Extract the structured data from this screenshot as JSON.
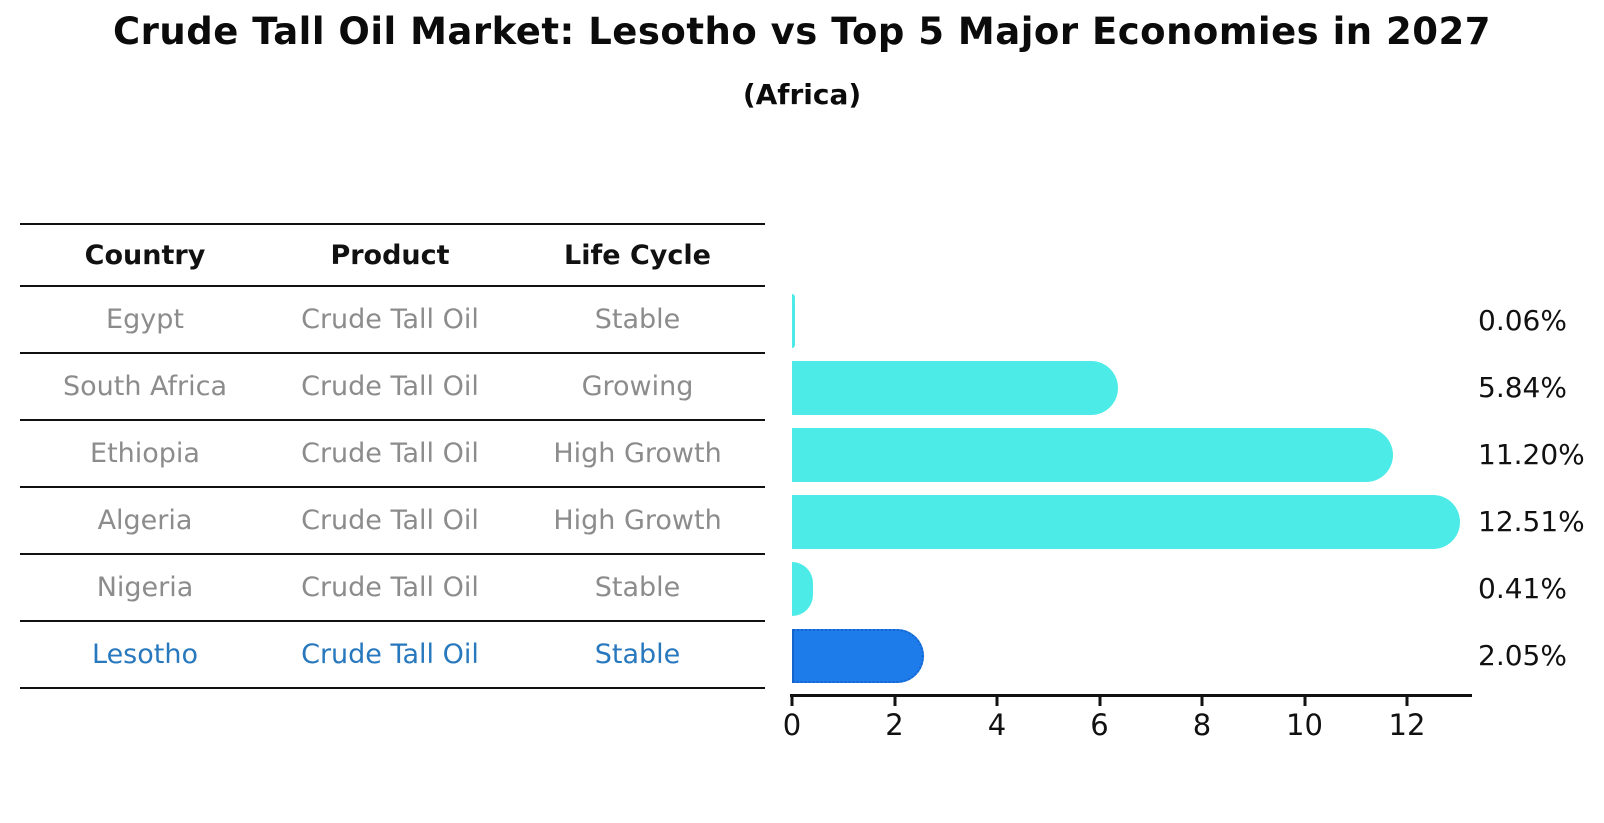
{
  "title": "Crude Tall Oil Market: Lesotho vs Top 5 Major Economies in 2027",
  "subtitle": "(Africa)",
  "table": {
    "headers": [
      "Country",
      "Product",
      "Life Cycle"
    ],
    "rows": [
      {
        "country": "Egypt",
        "product": "Crude Tall Oil",
        "life_cycle": "Stable",
        "highlight": false
      },
      {
        "country": "South Africa",
        "product": "Crude Tall Oil",
        "life_cycle": "Growing",
        "highlight": false
      },
      {
        "country": "Ethiopia",
        "product": "Crude Tall Oil",
        "life_cycle": "High Growth",
        "highlight": false
      },
      {
        "country": "Algeria",
        "product": "Crude Tall Oil",
        "life_cycle": "High Growth",
        "highlight": false
      },
      {
        "country": "Nigeria",
        "product": "Crude Tall Oil",
        "life_cycle": "Stable",
        "highlight": false
      },
      {
        "country": "Lesotho",
        "product": "Crude Tall Oil",
        "life_cycle": "Stable",
        "highlight": true
      }
    ]
  },
  "chart_data": {
    "type": "bar",
    "orientation": "horizontal",
    "title": "Crude Tall Oil Market: Lesotho vs Top 5 Major Economies in 2027",
    "subtitle": "(Africa)",
    "categories": [
      "Egypt",
      "South Africa",
      "Ethiopia",
      "Algeria",
      "Nigeria",
      "Lesotho"
    ],
    "values": [
      0.06,
      5.84,
      11.2,
      12.51,
      0.41,
      2.05
    ],
    "value_labels": [
      "0.06%",
      "5.84%",
      "11.20%",
      "12.51%",
      "0.41%",
      "2.05%"
    ],
    "highlight_index": 5,
    "x_ticks": [
      0,
      2,
      4,
      6,
      8,
      10,
      12
    ],
    "xlim": [
      0,
      13.3
    ],
    "grid": false,
    "legend": false,
    "colors": {
      "default_bar": "#4DEBE7",
      "highlight_bar": "#1E7CEA",
      "highlight_border": "#1464CE",
      "highlight_text": "#2878BE",
      "row_text": "#8C8C8C",
      "axis": "#111111"
    }
  }
}
